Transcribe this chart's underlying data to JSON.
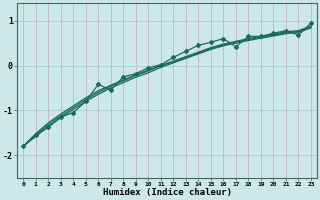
{
  "xlabel": "Humidex (Indice chaleur)",
  "bg_color": "#cce8e8",
  "line_color": "#1a6b5a",
  "grid_color_v": "#c8a8a8",
  "grid_color_h": "#aacccc",
  "x_humidex": [
    0,
    1,
    2,
    3,
    4,
    5,
    6,
    7,
    8,
    9,
    10,
    11,
    12,
    13,
    14,
    15,
    16,
    17,
    18,
    19,
    20,
    21,
    22,
    23
  ],
  "line_main": [
    -1.8,
    -1.55,
    -1.38,
    -1.15,
    -1.05,
    -0.8,
    -0.42,
    -0.55,
    -0.25,
    -0.18,
    -0.05,
    0.02,
    0.18,
    0.32,
    0.45,
    0.52,
    0.6,
    0.42,
    0.65,
    0.65,
    0.72,
    0.78,
    0.68,
    0.95
  ],
  "line_smooth1": [
    -1.8,
    -1.52,
    -1.28,
    -1.08,
    -0.9,
    -0.72,
    -0.56,
    -0.44,
    -0.32,
    -0.2,
    -0.1,
    0.0,
    0.1,
    0.2,
    0.3,
    0.4,
    0.48,
    0.54,
    0.6,
    0.65,
    0.7,
    0.75,
    0.78,
    0.88
  ],
  "line_smooth2": [
    -1.8,
    -1.55,
    -1.32,
    -1.12,
    -0.94,
    -0.76,
    -0.6,
    -0.46,
    -0.34,
    -0.22,
    -0.12,
    0.0,
    0.08,
    0.18,
    0.28,
    0.38,
    0.46,
    0.52,
    0.58,
    0.63,
    0.68,
    0.73,
    0.76,
    0.86
  ],
  "line_smooth3": [
    -1.8,
    -1.58,
    -1.36,
    -1.16,
    -0.98,
    -0.8,
    -0.64,
    -0.5,
    -0.38,
    -0.26,
    -0.16,
    -0.04,
    0.06,
    0.16,
    0.26,
    0.36,
    0.44,
    0.5,
    0.56,
    0.61,
    0.66,
    0.71,
    0.74,
    0.84
  ],
  "ylim": [
    -2.5,
    1.4
  ],
  "yticks": [
    -2,
    -1,
    0,
    1
  ],
  "figsize": [
    3.2,
    2.0
  ],
  "dpi": 100
}
